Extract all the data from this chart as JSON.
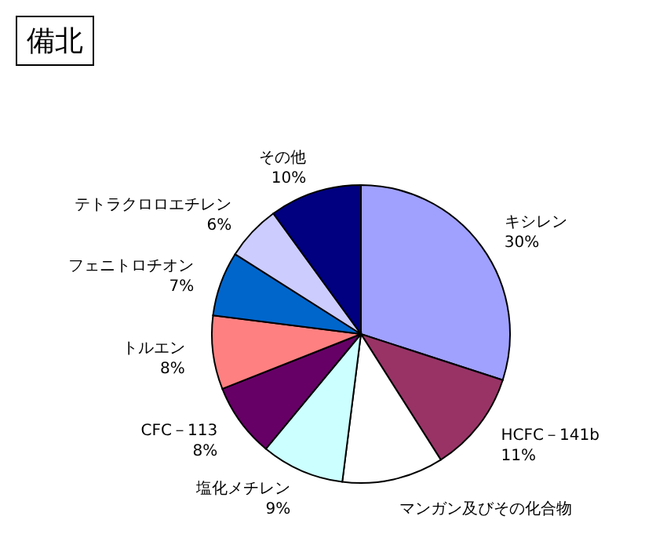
{
  "chart_data": {
    "type": "pie",
    "title": "備北",
    "categories": [
      "キシレン",
      "HCFC－141b",
      "マンガン及びその化合物",
      "塩化メチレン",
      "CFC－113",
      "トルエン",
      "フェニトロチオン",
      "テトラクロロエチレン",
      "その他"
    ],
    "values": [
      30,
      11,
      11,
      9,
      8,
      8,
      7,
      6,
      10
    ],
    "value_labels": [
      "30%",
      "11%",
      null,
      "9%",
      "8%",
      "8%",
      "7%",
      "6%",
      "10%"
    ],
    "colors": [
      "#a0a0ff",
      "#993366",
      "#ffffff",
      "#ccffff",
      "#660066",
      "#ff8080",
      "#0066cc",
      "#ccccff",
      "#000080"
    ],
    "legend": false
  }
}
